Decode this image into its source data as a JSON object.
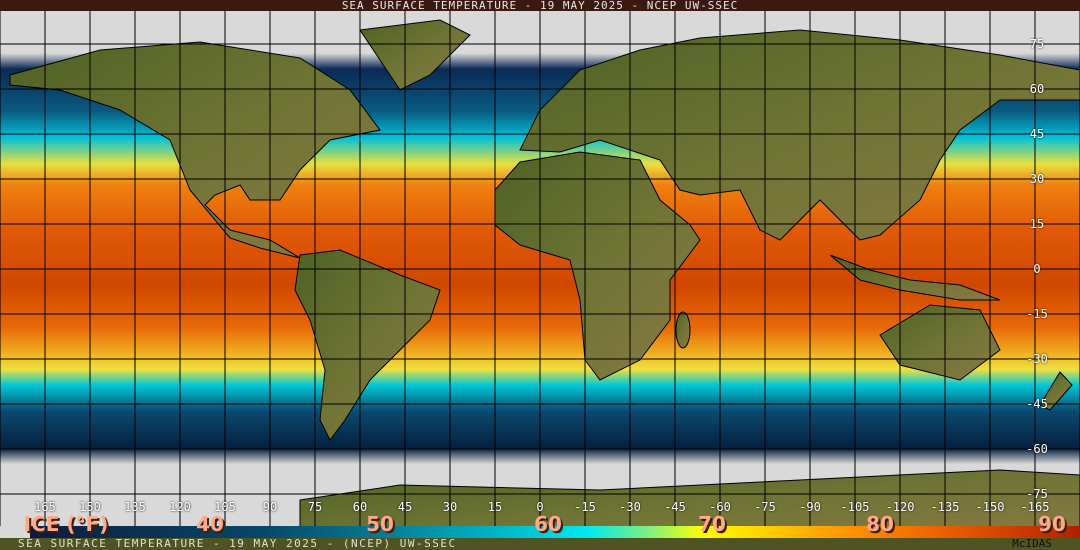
{
  "header": {
    "title": "SEA SURFACE TEMPERATURE - 19 MAY 2025 - NCEP UW-SSEC"
  },
  "footer": {
    "caption": "SEA SURFACE TEMPERATURE - 19 MAY 2025 - (NCEP)    UW-SSEC",
    "software": "McIDAS"
  },
  "latitude_labels": [
    "75",
    "60",
    "45",
    "30",
    "15",
    "0",
    "-15",
    "-30",
    "-45",
    "-60",
    "-75"
  ],
  "longitude_labels": [
    "165",
    "150",
    "135",
    "120",
    "105",
    "90",
    "75",
    "60",
    "45",
    "30",
    "15",
    "0",
    "-15",
    "-30",
    "-45",
    "-60",
    "-75",
    "-90",
    "-105",
    "-120",
    "-135",
    "-150",
    "-165"
  ],
  "legend": {
    "ice_label": "ICE (°F)",
    "ticks": [
      "40",
      "50",
      "60",
      "70",
      "80",
      "90"
    ],
    "colors": {
      "ice": "#d9d9d9",
      "cold": "#0a1a40",
      "cool": "#00e8f0",
      "mild": "#ffff00",
      "warm": "#ff8000",
      "hot": "#b02000"
    }
  },
  "colors": {
    "land": "#5c6b2c",
    "grid": "#000000",
    "title_bar": "#3a1a10",
    "footer_bar": "#4f5522"
  }
}
